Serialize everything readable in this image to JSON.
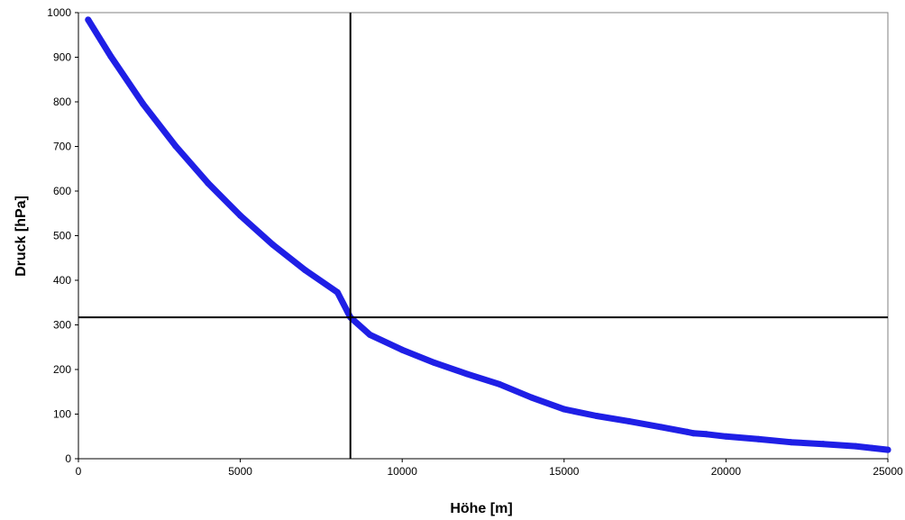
{
  "chart_data": {
    "type": "scatter",
    "title": "",
    "xlabel": "Höhe [m]",
    "ylabel": "Druck [hPa]",
    "xlim": [
      0,
      25000
    ],
    "ylim": [
      0,
      1000
    ],
    "x_ticks": [
      "0",
      "5000",
      "10000",
      "15000",
      "20000",
      "25000"
    ],
    "y_ticks": [
      "0",
      "100",
      "200",
      "300",
      "400",
      "500",
      "600",
      "700",
      "800",
      "900",
      "1000"
    ],
    "grid": false,
    "legend": "none",
    "series": [
      {
        "color": "#1f1fe6",
        "x": [
          300,
          1000,
          2000,
          3000,
          4000,
          5000,
          6000,
          7000,
          8000,
          8400,
          9000,
          10000,
          11000,
          12000,
          13000,
          14000,
          15000,
          16000,
          17000,
          18000,
          18800,
          19000,
          19400,
          20000,
          21000,
          22000,
          23000,
          24000,
          24500,
          25000
        ],
        "y": [
          984,
          902,
          795,
          701,
          618,
          545,
          480,
          423,
          373,
          317,
          278,
          244,
          215,
          190,
          167,
          137,
          111,
          96,
          84,
          71,
          60,
          57,
          55,
          50,
          44,
          37,
          33,
          28,
          24,
          20
        ]
      }
    ],
    "reference_lines": {
      "x": 8400,
      "y": 317,
      "color": "#000000"
    }
  }
}
